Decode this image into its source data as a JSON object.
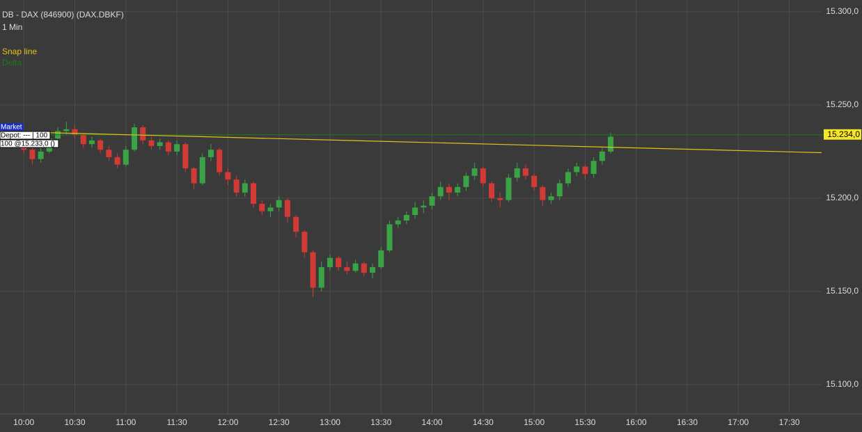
{
  "chart_data": {
    "type": "candlestick",
    "title": "DB - DAX (846900) (DAX.DBKF)",
    "subtitle": "1 Min",
    "x": [
      "10:00",
      "10:05",
      "10:10",
      "10:15",
      "10:20",
      "10:25",
      "10:30",
      "10:35",
      "10:40",
      "10:45",
      "10:50",
      "10:55",
      "11:00",
      "11:05",
      "11:10",
      "11:15",
      "11:20",
      "11:25",
      "11:30",
      "11:35",
      "11:40",
      "11:45",
      "11:50",
      "11:55",
      "12:00",
      "12:05",
      "12:10",
      "12:15",
      "12:20",
      "12:25",
      "12:30",
      "12:35",
      "12:40",
      "12:45",
      "12:50",
      "12:55",
      "13:00",
      "13:05",
      "13:10",
      "13:15",
      "13:20",
      "13:25",
      "13:30",
      "13:35",
      "13:40",
      "13:45",
      "13:50",
      "13:55",
      "14:00",
      "14:05",
      "14:10",
      "14:15",
      "14:20",
      "14:25",
      "14:30",
      "14:35",
      "14:40",
      "14:45",
      "14:50",
      "14:55",
      "15:00",
      "15:05",
      "15:10",
      "15:15",
      "15:20",
      "15:25",
      "15:30",
      "15:35",
      "15:40",
      "15:45"
    ],
    "open": [
      15228,
      15226,
      15221,
      15225,
      15232,
      15236,
      15237,
      15234,
      15229,
      15231,
      15226,
      15222,
      15218,
      15226,
      15238,
      15231,
      15228,
      15230,
      15225,
      15229,
      15216,
      15208,
      15222,
      15226,
      15214,
      15210,
      15203,
      15208,
      15197,
      15193,
      15195,
      15199,
      15190,
      15182,
      15171,
      15152,
      15163,
      15168,
      15163,
      15161,
      15165,
      15160,
      15163,
      15172,
      15186,
      15188,
      15191,
      15195,
      15196,
      15201,
      15206,
      15203,
      15206,
      15212,
      15216,
      15208,
      15200,
      15199,
      15211,
      15216,
      15212,
      15206,
      15199,
      15201,
      15208,
      15214,
      15217,
      15213,
      15220,
      15225
    ],
    "high": [
      15230,
      15227,
      15227,
      15234,
      15238,
      15241,
      15239,
      15235,
      15233,
      15232,
      15228,
      15224,
      15228,
      15240,
      15239,
      15233,
      15232,
      15231,
      15231,
      15230,
      15217,
      15224,
      15229,
      15227,
      15216,
      15212,
      15210,
      15209,
      15199,
      15197,
      15201,
      15200,
      15191,
      15183,
      15172,
      15166,
      15170,
      15169,
      15166,
      15167,
      15166,
      15165,
      15174,
      15188,
      15190,
      15193,
      15198,
      15199,
      15203,
      15209,
      15208,
      15208,
      15214,
      15219,
      15217,
      15209,
      15203,
      15213,
      15219,
      15218,
      15213,
      15207,
      15203,
      15210,
      15216,
      15219,
      15218,
      15222,
      15227,
      15235
    ],
    "low": [
      15224,
      15218,
      15219,
      15224,
      15230,
      15234,
      15232,
      15227,
      15227,
      15224,
      15220,
      15216,
      15217,
      15225,
      15229,
      15226,
      15226,
      15223,
      15223,
      15214,
      15205,
      15207,
      15220,
      15212,
      15207,
      15201,
      15201,
      15195,
      15191,
      15190,
      15193,
      15187,
      15179,
      15168,
      15147,
      15150,
      15161,
      15161,
      15159,
      15160,
      15158,
      15157,
      15162,
      15171,
      15184,
      15186,
      15189,
      15192,
      15194,
      15199,
      15199,
      15201,
      15204,
      15210,
      15206,
      15198,
      15195,
      15198,
      15209,
      15210,
      15204,
      15196,
      15197,
      15199,
      15206,
      15212,
      15210,
      15211,
      15218,
      15224
    ],
    "close": [
      15226,
      15221,
      15225,
      15232,
      15236,
      15237,
      15234,
      15229,
      15231,
      15226,
      15222,
      15218,
      15226,
      15238,
      15231,
      15228,
      15230,
      15225,
      15229,
      15216,
      15208,
      15222,
      15226,
      15214,
      15210,
      15203,
      15208,
      15197,
      15193,
      15195,
      15199,
      15190,
      15182,
      15171,
      15152,
      15163,
      15168,
      15163,
      15161,
      15165,
      15160,
      15163,
      15172,
      15186,
      15188,
      15191,
      15195,
      15196,
      15201,
      15206,
      15203,
      15206,
      15212,
      15216,
      15208,
      15200,
      15199,
      15211,
      15216,
      15212,
      15206,
      15199,
      15201,
      15208,
      15214,
      15217,
      15213,
      15220,
      15225,
      15233
    ],
    "up_color": "#3aa345",
    "down_color": "#d23b35",
    "xlim": [
      "09:46",
      "17:49"
    ],
    "xticks": [
      "10:00",
      "10:30",
      "11:00",
      "11:30",
      "12:00",
      "12:30",
      "13:00",
      "13:30",
      "14:00",
      "14:30",
      "15:00",
      "15:30",
      "16:00",
      "16:30",
      "17:00",
      "17:30"
    ],
    "ylim": [
      15084.3,
      15306.3
    ],
    "yticks": [
      {
        "value": 15100,
        "label": "15.100,0"
      },
      {
        "value": 15150,
        "label": "15.150,0"
      },
      {
        "value": 15200,
        "label": "15.200,0"
      },
      {
        "value": 15250,
        "label": "15.250,0"
      },
      {
        "value": 15300,
        "label": "15.300,0"
      }
    ],
    "grid": true,
    "snap_line": {
      "name": "Snap line",
      "color": "#e8c21a",
      "x": [
        "09:46",
        "17:49"
      ],
      "values": [
        15235.8,
        15224.4
      ]
    },
    "price_line": {
      "name": "Delta",
      "color": "#1f7a1f",
      "value": 15234,
      "label": "15.234,0"
    },
    "order": {
      "kind": "Market",
      "depot": "Depot: --- | 100",
      "detail": "100 @15.233,0 ()"
    }
  }
}
